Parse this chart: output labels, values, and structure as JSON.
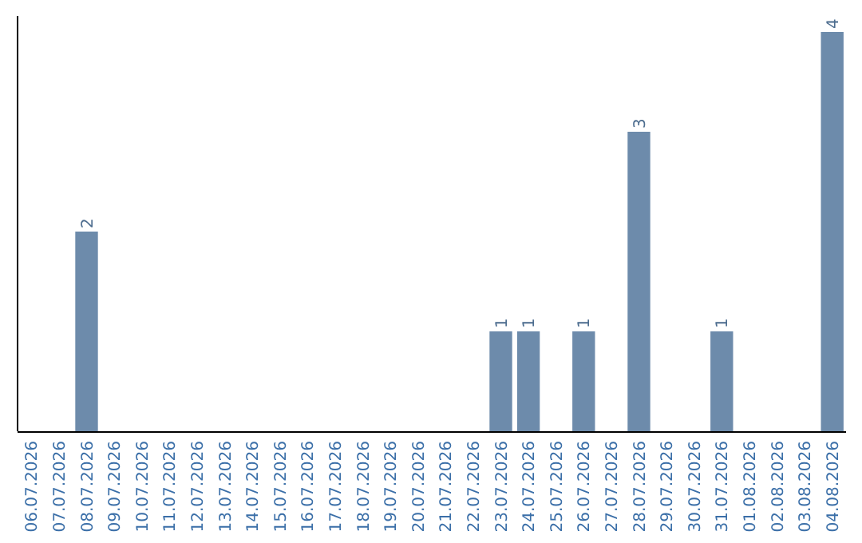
{
  "chart_data": {
    "type": "bar",
    "categories": [
      "06.07.2026",
      "07.07.2026",
      "08.07.2026",
      "09.07.2026",
      "10.07.2026",
      "11.07.2026",
      "12.07.2026",
      "13.07.2026",
      "14.07.2026",
      "15.07.2026",
      "16.07.2026",
      "17.07.2026",
      "18.07.2026",
      "19.07.2026",
      "20.07.2026",
      "21.07.2026",
      "22.07.2026",
      "23.07.2026",
      "24.07.2026",
      "25.07.2026",
      "26.07.2026",
      "27.07.2026",
      "28.07.2026",
      "29.07.2026",
      "30.07.2026",
      "31.07.2026",
      "01.08.2026",
      "02.08.2026",
      "03.08.2026",
      "04.08.2026"
    ],
    "values": [
      0,
      0,
      2,
      0,
      0,
      0,
      0,
      0,
      0,
      0,
      0,
      0,
      0,
      0,
      0,
      0,
      0,
      1,
      1,
      0,
      1,
      0,
      3,
      0,
      0,
      1,
      0,
      0,
      0,
      4
    ],
    "value_labels": [
      null,
      null,
      "2",
      null,
      null,
      null,
      null,
      null,
      null,
      null,
      null,
      null,
      null,
      null,
      null,
      null,
      null,
      "1",
      "1",
      null,
      "1",
      null,
      "3",
      null,
      null,
      "1",
      null,
      null,
      null,
      "4"
    ],
    "color": "#6d8bab",
    "ylim": [
      0,
      4.16
    ],
    "tick_labels": "x"
  }
}
